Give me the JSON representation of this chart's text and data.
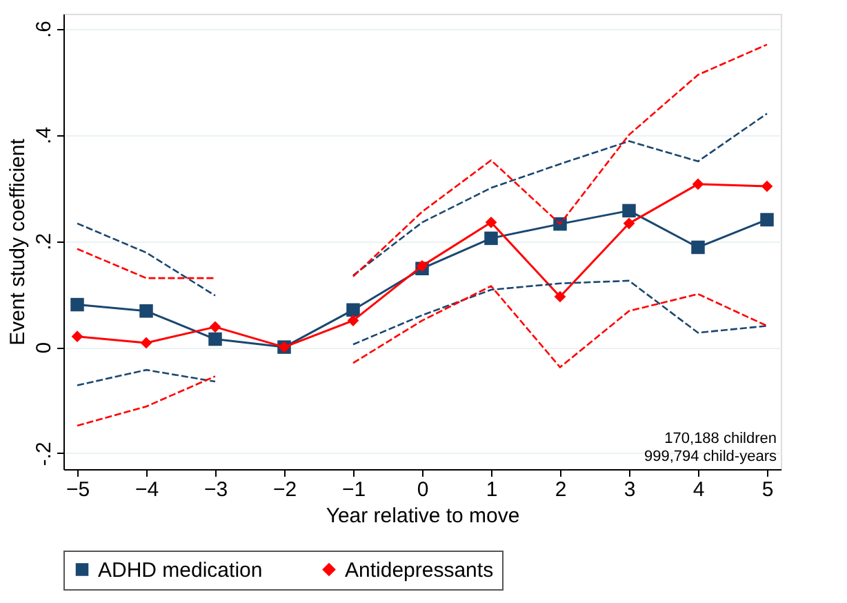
{
  "chart_data": {
    "type": "line",
    "xlabel": "Year relative to move",
    "ylabel": "Event study coefficient",
    "x": [
      -5,
      -4,
      -3,
      -2,
      -1,
      0,
      1,
      2,
      3,
      4,
      5
    ],
    "series": [
      {
        "name": "ADHD medication",
        "color": "#1a476f",
        "marker": "square",
        "values": [
          0.08,
          0.068,
          0.015,
          0,
          0.07,
          0.148,
          0.205,
          0.232,
          0.257,
          0.188,
          0.24
        ]
      },
      {
        "name": "Antidepressants",
        "color": "#ff0000",
        "marker": "diamond",
        "values": [
          0.02,
          0.008,
          0.038,
          0,
          0.05,
          0.153,
          0.235,
          0.095,
          0.233,
          0.307,
          0.303
        ]
      },
      {
        "color": "#1a476f",
        "marker": "none",
        "line_style": "dashed",
        "values": [
          -0.072,
          -0.043,
          -0.065,
          null,
          0.005,
          0.06,
          0.108,
          0.12,
          0.125,
          0.027,
          0.04
        ]
      },
      {
        "color": "#1a476f",
        "marker": "none",
        "line_style": "dashed",
        "values": [
          0.233,
          0.178,
          0.097,
          null,
          0.135,
          0.235,
          0.3,
          0.345,
          0.388,
          0.35,
          0.44
        ]
      },
      {
        "color": "#ff0000",
        "marker": "none",
        "line_style": "dashed",
        "values": [
          -0.148,
          -0.112,
          -0.055,
          null,
          -0.03,
          0.05,
          0.115,
          -0.038,
          0.068,
          0.1,
          0.04
        ]
      },
      {
        "color": "#ff0000",
        "marker": "none",
        "line_style": "dashed",
        "values": [
          0.185,
          0.13,
          0.13,
          null,
          0.133,
          0.255,
          0.352,
          0.232,
          0.4,
          0.513,
          0.57
        ]
      }
    ],
    "xlim": [
      -5.2,
      5.2
    ],
    "xticks": [
      -5,
      -4,
      -3,
      -2,
      -1,
      0,
      1,
      2,
      3,
      4,
      5
    ],
    "ylim": [
      -0.23,
      0.628
    ],
    "yticks": [
      {
        "value": -0.2,
        "label": "-.2"
      },
      {
        "value": 0,
        "label": "0"
      },
      {
        "value": 0.2,
        "label": ".2"
      },
      {
        "value": 0.4,
        "label": ".4"
      },
      {
        "value": 0.6,
        "label": ".6"
      }
    ],
    "grid": "y",
    "legend": "bottom",
    "line_style": "solid",
    "annotations": [
      "170,188 children",
      "999,794 child-years"
    ]
  }
}
